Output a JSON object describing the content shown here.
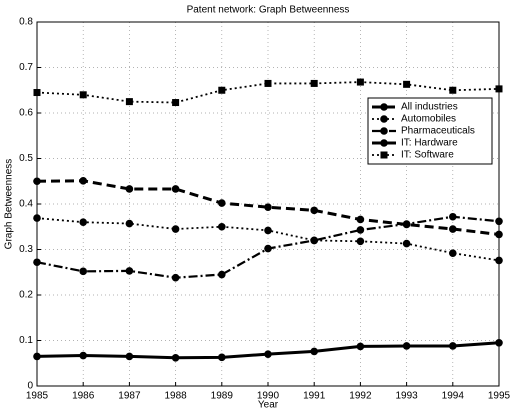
{
  "chart_data": {
    "type": "line",
    "title": "Patent network: Graph Betweenness",
    "x_label": "Year",
    "y_label": "Graph Betweenness",
    "x": [
      1985,
      1986,
      1987,
      1988,
      1989,
      1990,
      1991,
      1992,
      1993,
      1994,
      1995
    ],
    "xlim": [
      1985,
      1995
    ],
    "xticks": [
      1985,
      1986,
      1987,
      1988,
      1989,
      1990,
      1991,
      1992,
      1993,
      1994,
      1995
    ],
    "ylim": [
      0,
      0.8
    ],
    "yticks": [
      0,
      0.1,
      0.2,
      0.3,
      0.4,
      0.5,
      0.6,
      0.7,
      0.8
    ],
    "grid": true,
    "legend": "upper right",
    "series": [
      {
        "name": "All industries",
        "color": "#000000",
        "style": "dashed",
        "marker": "circle",
        "values": [
          0.45,
          0.451,
          0.433,
          0.433,
          0.402,
          0.393,
          0.386,
          0.366,
          0.355,
          0.345,
          0.333
        ]
      },
      {
        "name": "Automobiles",
        "color": "#000000",
        "style": "dotted",
        "marker": "circle",
        "values": [
          0.369,
          0.36,
          0.357,
          0.345,
          0.35,
          0.342,
          0.32,
          0.318,
          0.313,
          0.292,
          0.276
        ]
      },
      {
        "name": "Pharmaceuticals",
        "color": "#000000",
        "style": "dashdot",
        "marker": "circle",
        "values": [
          0.272,
          0.252,
          0.253,
          0.238,
          0.245,
          0.302,
          0.32,
          0.343,
          0.356,
          0.372,
          0.362
        ]
      },
      {
        "name": "IT: Hardware",
        "color": "#000000",
        "style": "solid",
        "marker": "circle",
        "values": [
          0.065,
          0.067,
          0.065,
          0.062,
          0.063,
          0.07,
          0.076,
          0.087,
          0.088,
          0.088,
          0.095
        ]
      },
      {
        "name": "IT: Software",
        "color": "#000000",
        "style": "dotted",
        "marker": "square",
        "values": [
          0.645,
          0.64,
          0.625,
          0.623,
          0.65,
          0.665,
          0.665,
          0.668,
          0.663,
          0.65,
          0.653
        ]
      }
    ]
  }
}
